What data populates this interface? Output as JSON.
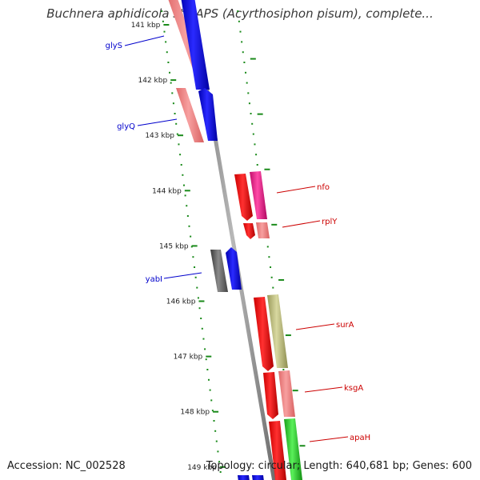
{
  "title": "Buchnera aphidicola str. APS (Acyrthosiphon pisum), complete...",
  "footer": {
    "accession": "Accession: NC_002528",
    "summary": "Topology: circular; Length: 640,681 bp; Genes: 600"
  },
  "colors": {
    "forward_label": "#0000cc",
    "reverse_label": "#cc0000",
    "ruler": "#1a8a1a",
    "backbone": "#808080"
  },
  "ticks": [
    {
      "label": "141 kbp"
    },
    {
      "label": "142 kbp"
    },
    {
      "label": "143 kbp"
    },
    {
      "label": "144 kbp"
    },
    {
      "label": "145 kbp"
    },
    {
      "label": "146 kbp"
    },
    {
      "label": "147 kbp"
    },
    {
      "label": "148 kbp"
    },
    {
      "label": "149 kbp"
    }
  ],
  "gene_labels": {
    "glyS": "glyS",
    "glyQ": "glyQ",
    "yabI": "yabI",
    "nfo": "nfo",
    "rplY": "rplY",
    "surA": "surA",
    "ksgA": "ksgA",
    "apaH": "apaH"
  }
}
